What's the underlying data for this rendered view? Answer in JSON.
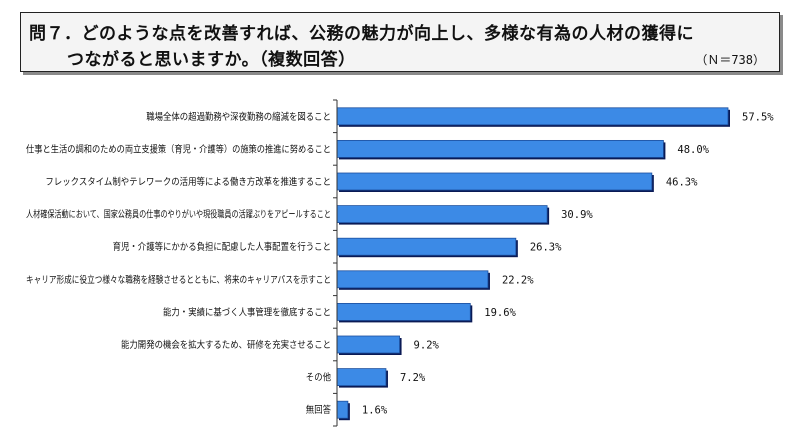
{
  "header": {
    "title_line1": "問７．どのような点を改善すれば、公務の魅力が向上し、多様な有為の人材の獲得に",
    "title_line2": "つながると思いますか。（複数回答）",
    "n": "（Ｎ＝738）"
  },
  "chart_data": {
    "type": "bar",
    "orientation": "horizontal",
    "title": "問７．どのような点を改善すれば、公務の魅力が向上し、多様な有為の人材の獲得につながると思いますか。（複数回答）",
    "unit": "%",
    "xlim": [
      0,
      70
    ],
    "categories": [
      "職場全体の超過勤務や深夜勤務の縮減を図ること",
      "仕事と生活の調和のための両立支援策（育児・介護等）の施策の推進に努めること",
      "フレックスタイム制やテレワークの活用等による働き方改革を推進すること",
      "人材確保活動において、国家公務員の仕事のやりがいや現役職員の活躍ぶりをアピールすること",
      "育児・介護等にかかる負担に配慮した人事配置を行うこと",
      "キャリア形成に役立つ様々な職務を経験させるとともに、将来のキャリアパスを示すこと",
      "能力・実績に基づく人事管理を徹底すること",
      "能力開発の機会を拡大するため、研修を充実させること",
      "その他",
      "無回答"
    ],
    "values": [
      57.5,
      48.0,
      46.3,
      30.9,
      26.3,
      22.2,
      19.6,
      9.2,
      7.2,
      1.6
    ],
    "value_labels": [
      "57.5%",
      "48.0%",
      "46.3%",
      "30.9%",
      "26.3%",
      "22.2%",
      "19.6%",
      "9.2%",
      "7.2%",
      "1.6%"
    ],
    "colors": {
      "bar": "#3c8ae6",
      "bar_edge": "#1c4f9e",
      "bar_shadow": "#0a1a55"
    }
  }
}
